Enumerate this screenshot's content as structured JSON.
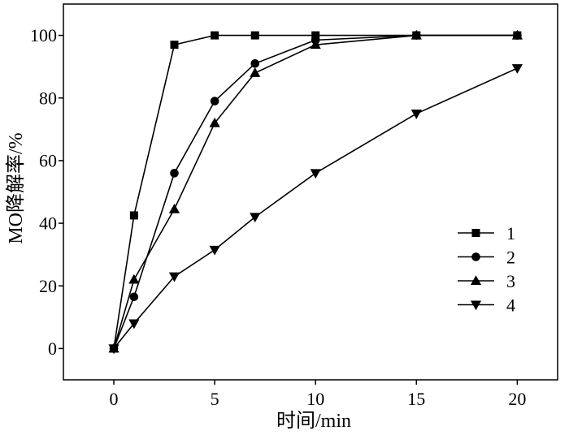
{
  "chart_data": {
    "type": "line",
    "xlabel": "时间/min",
    "ylabel": "MO降解率/%",
    "xlim": [
      -2.5,
      22
    ],
    "ylim": [
      -10,
      110
    ],
    "xticks": [
      0,
      5,
      10,
      15,
      20
    ],
    "yticks": [
      0,
      20,
      40,
      60,
      80,
      100
    ],
    "grid": false,
    "legend_position": "lower-right",
    "color": "#000000",
    "series": [
      {
        "name": "1",
        "marker": "square",
        "x": [
          0,
          1,
          3,
          5,
          7,
          10,
          15,
          20
        ],
        "y": [
          0,
          42.5,
          97,
          100,
          100,
          100,
          100,
          100
        ]
      },
      {
        "name": "2",
        "marker": "circle",
        "x": [
          0,
          1,
          3,
          5,
          7,
          10,
          15,
          20
        ],
        "y": [
          0,
          16.5,
          56,
          79,
          91,
          98.5,
          100,
          100
        ]
      },
      {
        "name": "3",
        "marker": "triangle-up",
        "x": [
          0,
          1,
          3,
          5,
          7,
          10,
          15,
          20
        ],
        "y": [
          0,
          22,
          44.5,
          72,
          88,
          97,
          100,
          100
        ]
      },
      {
        "name": "4",
        "marker": "triangle-down",
        "x": [
          0,
          1,
          3,
          5,
          7,
          10,
          15,
          20
        ],
        "y": [
          0,
          8,
          23,
          31.5,
          42,
          56,
          75,
          89.5
        ]
      }
    ]
  }
}
